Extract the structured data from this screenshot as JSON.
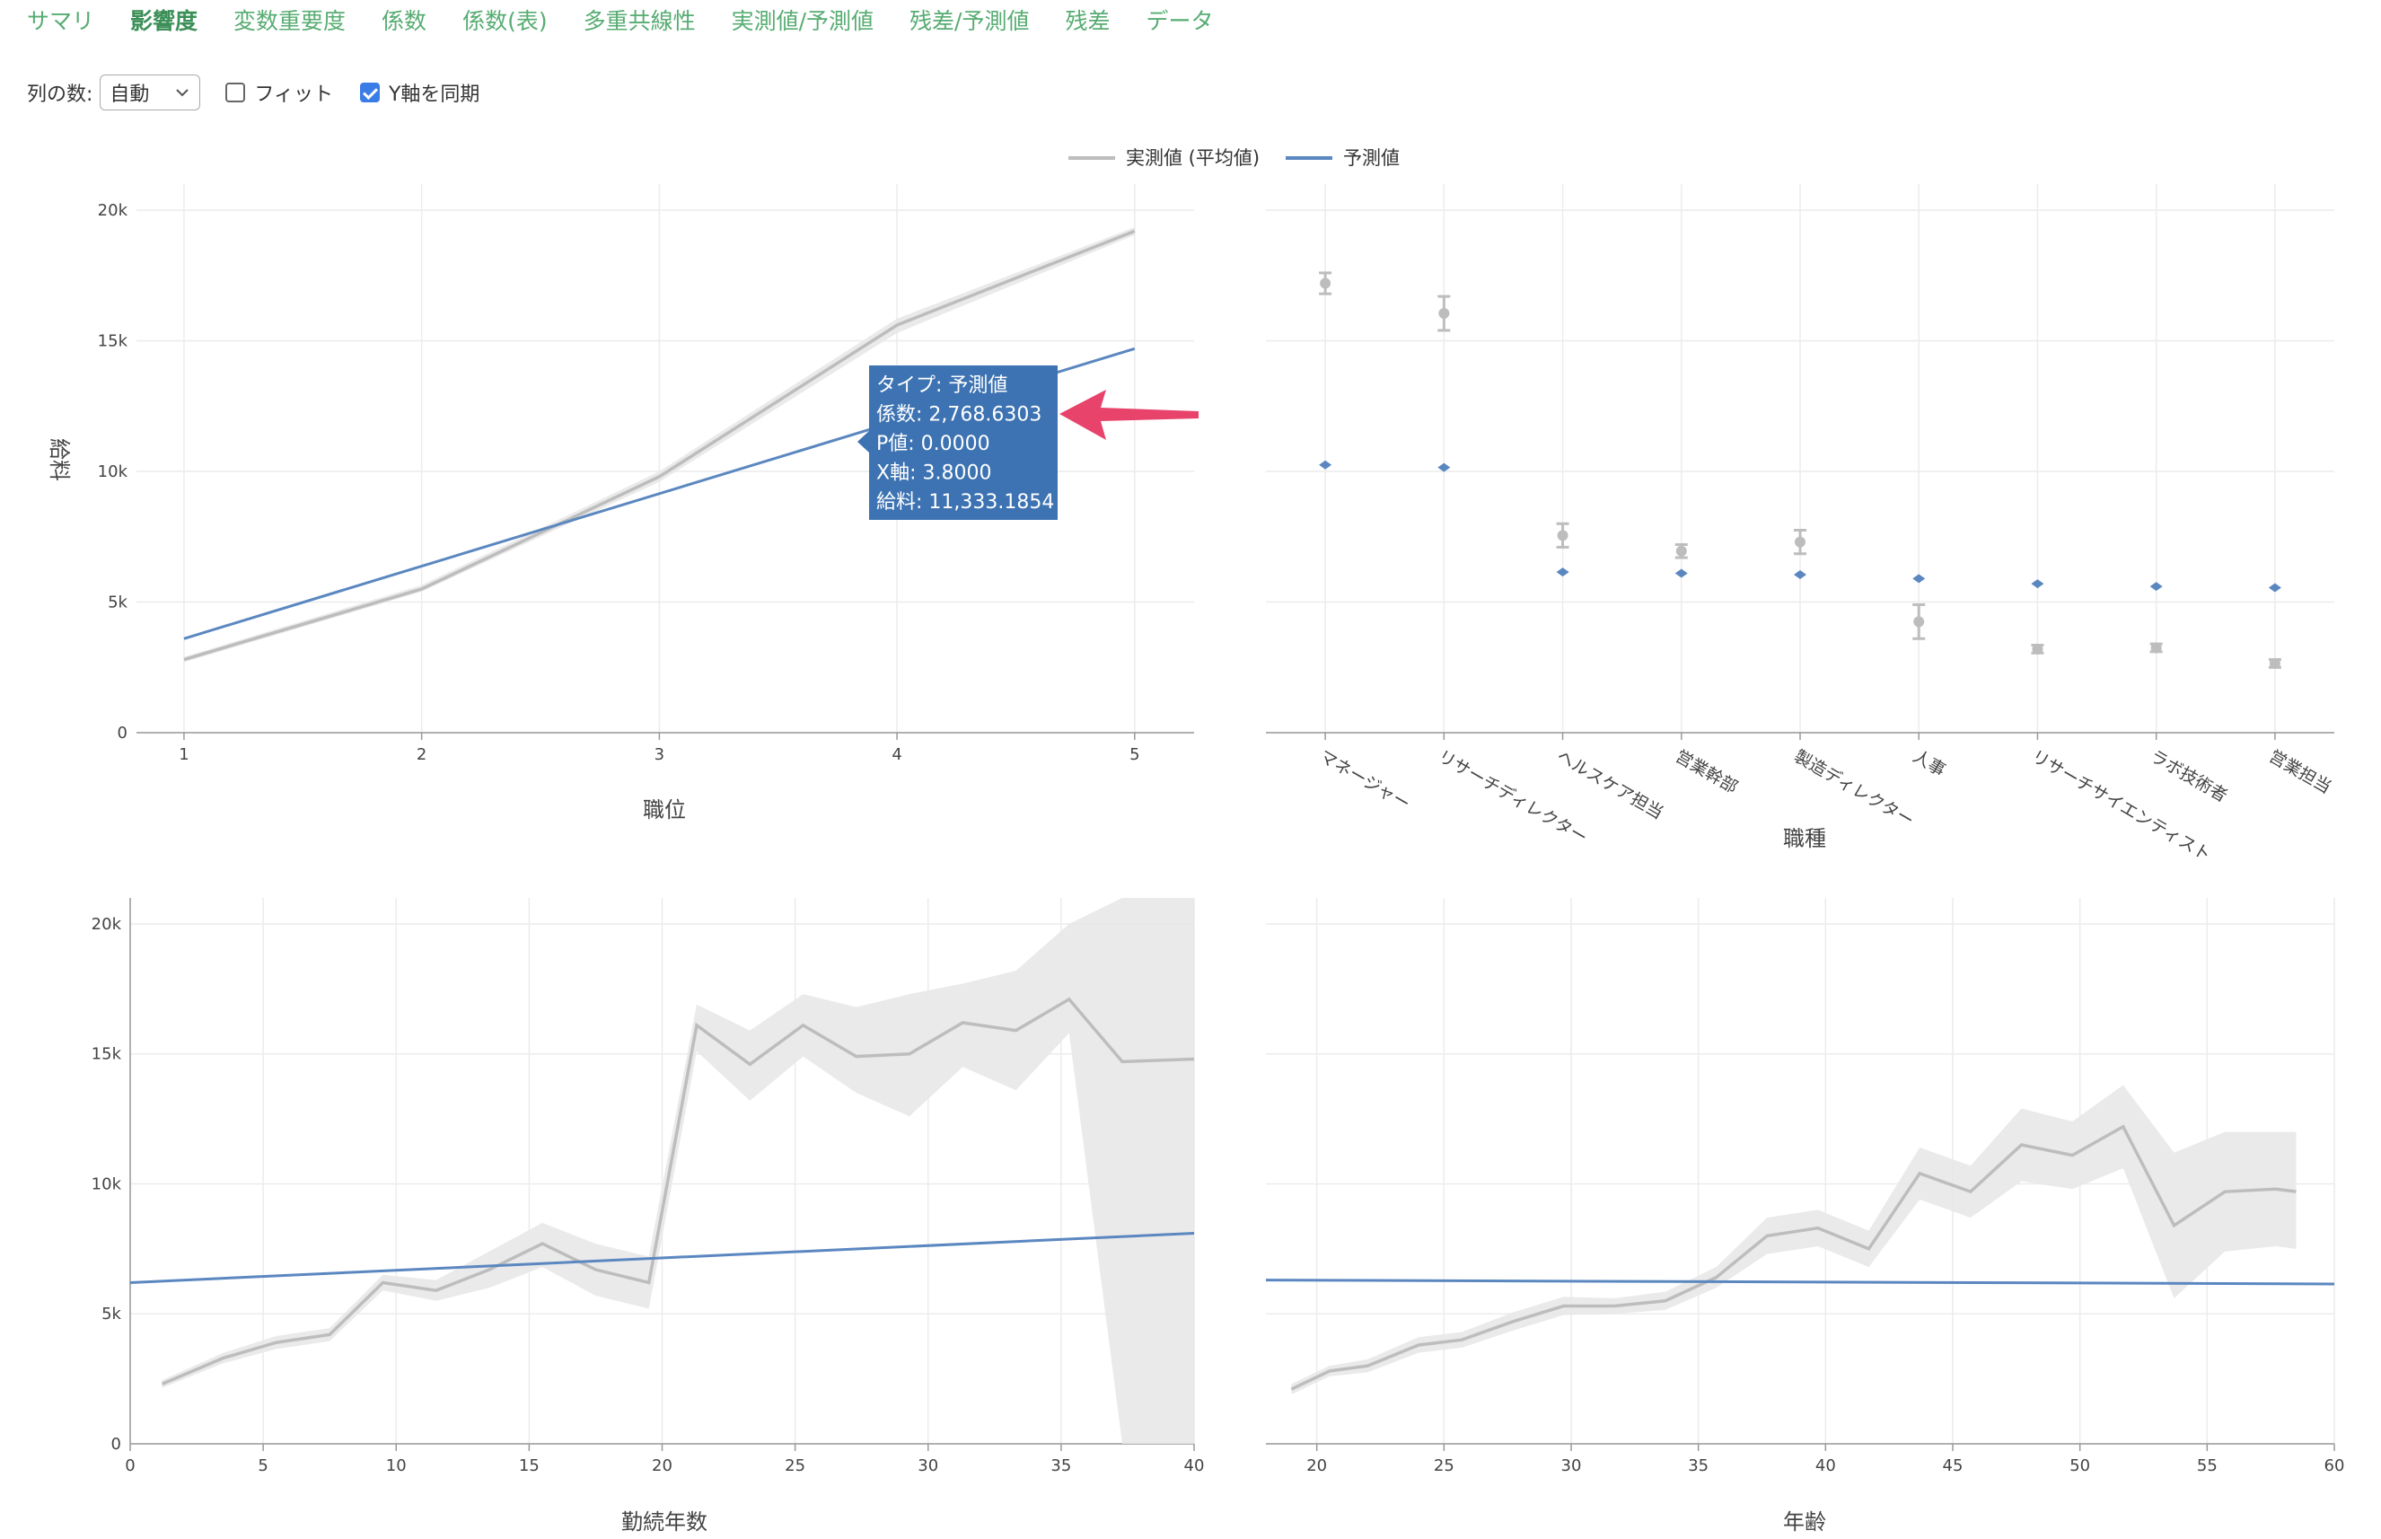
{
  "tabs": [
    {
      "label": "サマリ"
    },
    {
      "label": "影響度",
      "active": true
    },
    {
      "label": "変数重要度"
    },
    {
      "label": "係数"
    },
    {
      "label": "係数(表)"
    },
    {
      "label": "多重共線性"
    },
    {
      "label": "実測値/予測値"
    },
    {
      "label": "残差/予測値"
    },
    {
      "label": "残差"
    },
    {
      "label": "データ"
    }
  ],
  "toolbar": {
    "columns_label": "列の数:",
    "columns_value": "自動",
    "fit_label": "フィット",
    "fit_checked": false,
    "sync_label": "Y軸を同期",
    "sync_checked": true
  },
  "colors": {
    "tab_text": "#57ac72",
    "actual": "#bdbdbd",
    "band": "#e8e8e8",
    "predicted": "#5b87c0",
    "tooltip_bg": "#3d73b2",
    "arrow": "#e8436a",
    "grid": "#ececec"
  },
  "legend": {
    "actual": "実測値 (平均値)",
    "predicted": "予測値",
    "placement": "top-center"
  },
  "tooltip": {
    "lines": [
      "タイプ: 予測値",
      "係数: 2,768.6303",
      "P値: 0.0000",
      "X軸: 3.8000",
      "給料: 11,333.1854"
    ]
  },
  "chart_data": [
    {
      "type": "line",
      "xlabel": "職位",
      "ylabel": "給料",
      "ylim": [
        0,
        21000
      ],
      "xlim": [
        0.8,
        5.25
      ],
      "xticks": [
        1,
        2,
        3,
        4,
        5
      ],
      "yticks": [
        0,
        5000,
        10000,
        15000,
        20000
      ],
      "ytick_labels": [
        "0",
        "5k",
        "10k",
        "15k",
        "20k"
      ],
      "series": [
        {
          "name": "実測値 (平均値)",
          "x": [
            1,
            2,
            3,
            4,
            5
          ],
          "y": [
            2800,
            5500,
            9800,
            15600,
            19200
          ],
          "lower": [
            2700,
            5400,
            9600,
            15300,
            19050
          ],
          "upper": [
            2900,
            5650,
            10000,
            15850,
            19350
          ]
        },
        {
          "name": "予測値",
          "x": [
            1,
            5
          ],
          "y": [
            3600,
            14700
          ]
        }
      ]
    },
    {
      "type": "scatter",
      "xlabel": "職種",
      "ylim": [
        0,
        21000
      ],
      "yticks": [
        0,
        5000,
        10000,
        15000,
        20000
      ],
      "categories": [
        "マネージャー",
        "リサーチディレクター",
        "ヘルスケア担当",
        "営業幹部",
        "製造ディレクター",
        "人事",
        "リサーチサイエンティスト",
        "ラボ技術者",
        "営業担当"
      ],
      "series": [
        {
          "name": "実測値 (平均値)",
          "values": [
            17200,
            16050,
            7550,
            6950,
            7300,
            4250,
            3200,
            3250,
            2650
          ],
          "lower": [
            16800,
            15400,
            7100,
            6700,
            6850,
            3600,
            3050,
            3100,
            2500
          ],
          "upper": [
            17600,
            16700,
            8000,
            7200,
            7750,
            4900,
            3350,
            3400,
            2800
          ]
        },
        {
          "name": "予測値",
          "values": [
            10250,
            10150,
            6150,
            6100,
            6050,
            5900,
            5700,
            5600,
            5550
          ]
        }
      ]
    },
    {
      "type": "line",
      "xlabel": "勤続年数",
      "ylim": [
        0,
        21000
      ],
      "xlim": [
        0,
        40
      ],
      "xticks": [
        0,
        5,
        10,
        15,
        20,
        25,
        30,
        35,
        40
      ],
      "yticks": [
        0,
        5000,
        10000,
        15000,
        20000
      ],
      "ytick_labels": [
        "0",
        "5k",
        "10k",
        "15k",
        "20k"
      ],
      "series": [
        {
          "name": "実測値 (平均値)",
          "x": [
            1.2,
            3.5,
            5.5,
            7.5,
            9.5,
            11.5,
            13.5,
            15.5,
            17.5,
            19.5,
            21.3,
            23.3,
            25.3,
            27.3,
            29.3,
            31.3,
            33.3,
            35.3,
            37.3,
            40
          ],
          "y": [
            2300,
            3300,
            3900,
            4200,
            6200,
            5900,
            6700,
            7700,
            6700,
            6200,
            16100,
            14600,
            16100,
            14900,
            15000,
            16200,
            15900,
            17100,
            14700,
            14800
          ],
          "lower": [
            2150,
            3100,
            3650,
            3950,
            5900,
            5500,
            6000,
            6800,
            5700,
            5200,
            15100,
            13200,
            14900,
            13500,
            12600,
            14500,
            13600,
            15800,
            0,
            0
          ],
          "upper": [
            2450,
            3500,
            4150,
            4450,
            6500,
            6300,
            7400,
            8500,
            7700,
            7200,
            16900,
            15900,
            17300,
            16800,
            17300,
            17700,
            18200,
            20000,
            21000,
            21000
          ]
        },
        {
          "name": "予測値",
          "x": [
            0,
            40
          ],
          "y": [
            6200,
            8100
          ]
        }
      ]
    },
    {
      "type": "line",
      "xlabel": "年齢",
      "ylim": [
        0,
        21000
      ],
      "xlim": [
        18,
        60
      ],
      "xticks": [
        20,
        25,
        30,
        35,
        40,
        45,
        50,
        55,
        60
      ],
      "yticks": [
        0,
        5000,
        10000,
        15000,
        20000
      ],
      "series": [
        {
          "name": "実測値 (平均値)",
          "x": [
            19,
            20.5,
            22,
            24,
            25.7,
            27.7,
            29.7,
            31.7,
            33.7,
            35.7,
            37.7,
            39.7,
            41.7,
            43.7,
            45.7,
            47.7,
            49.7,
            51.7,
            53.7,
            55.7,
            57.7,
            58.5
          ],
          "y": [
            2100,
            2800,
            3000,
            3800,
            4000,
            4700,
            5300,
            5300,
            5500,
            6400,
            8000,
            8300,
            7500,
            10400,
            9700,
            11500,
            11100,
            12200,
            8400,
            9700,
            9800,
            9700
          ],
          "lower": [
            1900,
            2600,
            2750,
            3500,
            3700,
            4350,
            4950,
            5000,
            5150,
            6000,
            7300,
            7600,
            6800,
            9400,
            8700,
            10100,
            9800,
            10600,
            5600,
            7400,
            7600,
            7500
          ],
          "upper": [
            2300,
            3000,
            3250,
            4100,
            4300,
            5050,
            5650,
            5600,
            5850,
            6800,
            8700,
            9000,
            8200,
            11400,
            10700,
            12900,
            12400,
            13800,
            11200,
            12000,
            12000,
            12000
          ]
        },
        {
          "name": "予測値",
          "x": [
            18,
            60
          ],
          "y": [
            6300,
            6150
          ]
        }
      ]
    }
  ]
}
